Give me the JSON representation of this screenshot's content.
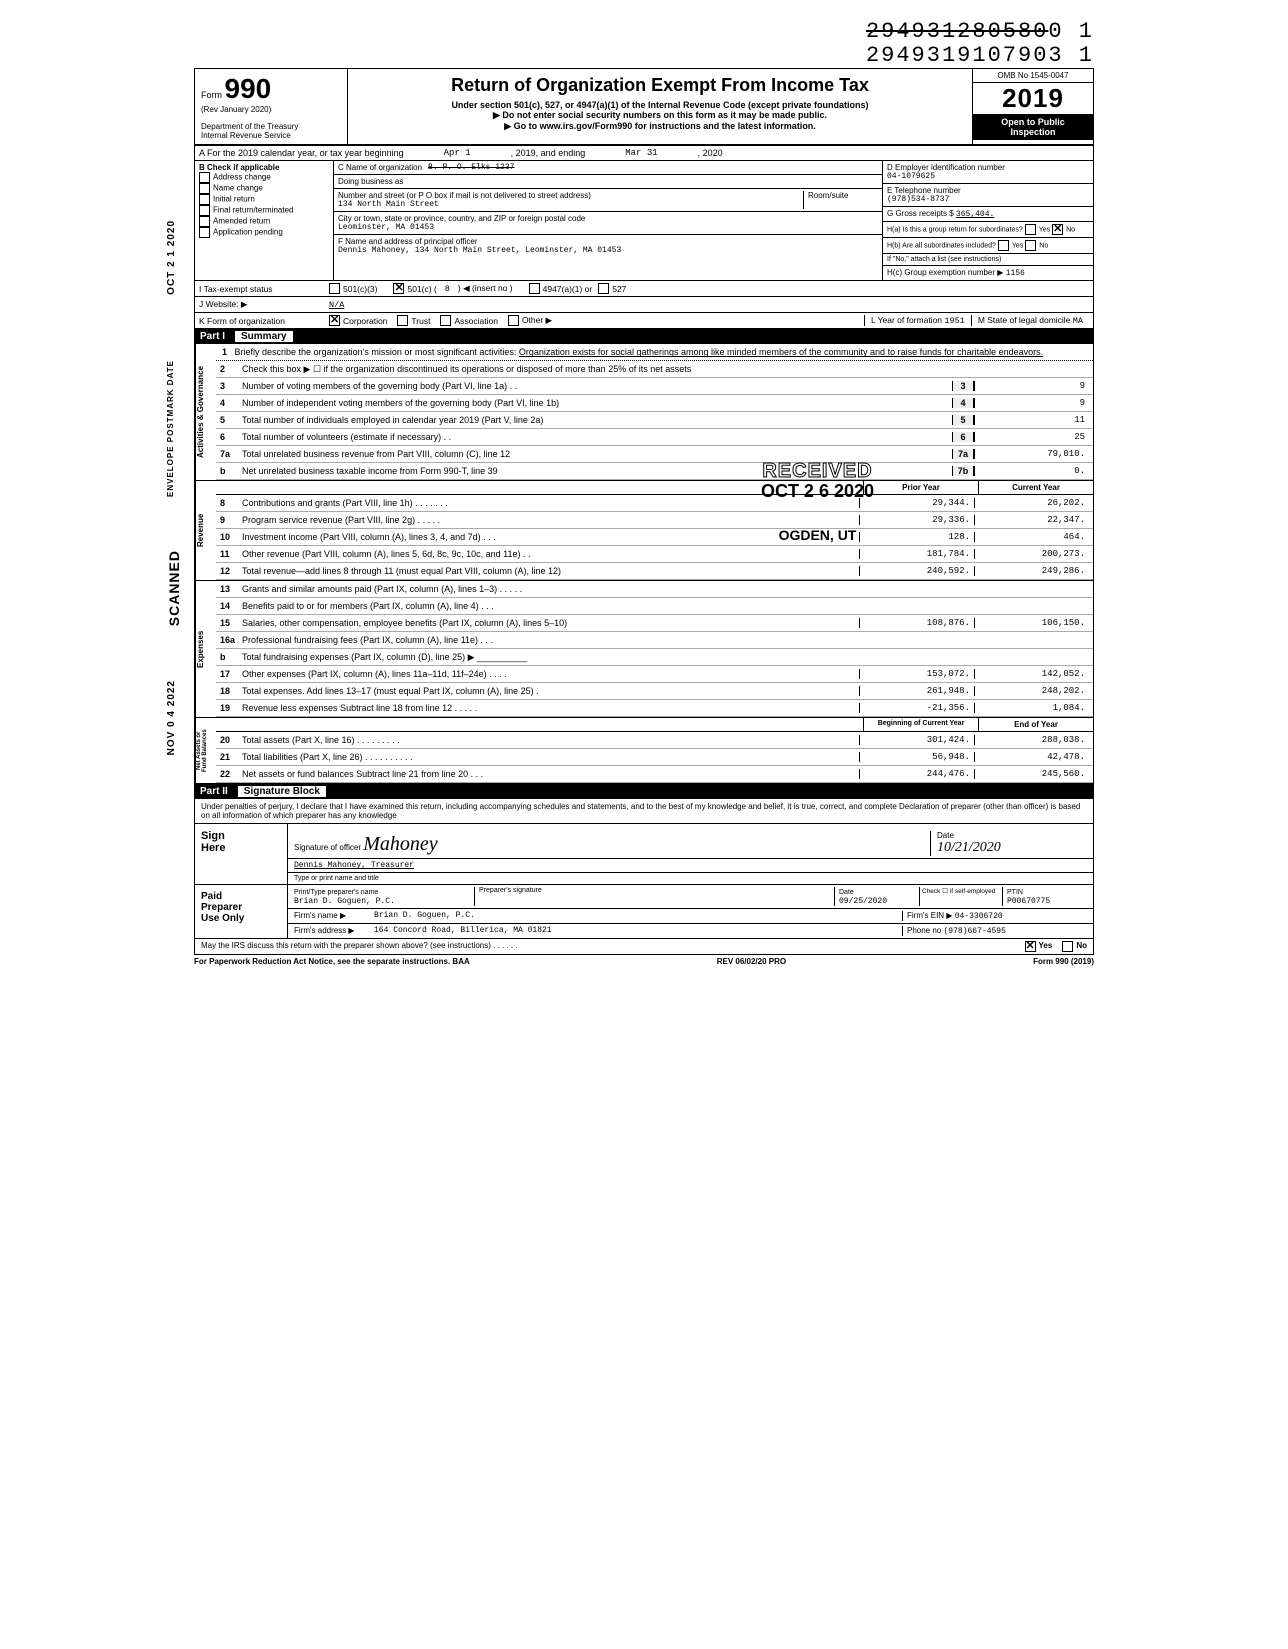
{
  "barcode": {
    "line1": "294931280580",
    "line1_suffix": "0  1",
    "line2": "29493191079",
    "line2_suffix": "03  1"
  },
  "header": {
    "form_word": "Form",
    "form_num": "990",
    "rev": "(Rev  January 2020)",
    "dept": "Department of the Treasury\nInternal Revenue Service",
    "title": "Return of Organization Exempt From Income Tax",
    "sub1": "Under section 501(c), 527, or 4947(a)(1) of the Internal Revenue Code (except private foundations)",
    "sub2": "▶ Do not enter social security numbers on this form as it may be made public.",
    "sub3": "▶ Go to www.irs.gov/Form990 for instructions and the latest information.",
    "omb": "OMB No 1545-0047",
    "year_prefix": "20",
    "year_suffix": "19",
    "open1": "Open to Public",
    "open2": "Inspection"
  },
  "line_a": {
    "label": "A   For the 2019 calendar year, or tax year beginning",
    "begin": "Apr 1",
    "mid": ", 2019, and ending",
    "end": "Mar 31",
    "endyear": ", 2020"
  },
  "col_b": {
    "label": "B   Check if applicable",
    "items": [
      "Address change",
      "Name change",
      "Initial return",
      "Final return/terminated",
      "Amended return",
      "Application pending"
    ]
  },
  "col_c": {
    "name_label": "C Name of organization",
    "name": "B. P. O.   Elks  1237",
    "dba_label": "Doing business as",
    "street_label": "Number and street (or P O  box if mail is not delivered to street address)",
    "street": "134 North Main Street",
    "room_label": "Room/suite",
    "city_label": "City or town, state or province, country, and ZIP or foreign postal code",
    "city": "Leominster, MA 01453",
    "officer_label": "F Name and address of principal officer",
    "officer": "Dennis Mahoney, 134 North Main Street, Leominster, MA 01453"
  },
  "col_d": {
    "ein_label": "D Employer identification number",
    "ein": "04-1079625",
    "tel_label": "E Telephone number",
    "tel": "(978)534-8737",
    "gross_label": "G Gross receipts $",
    "gross": "365,404.",
    "ha": "H(a) Is this a group return for subordinates?",
    "hb": "H(b) Are all subordinates included?",
    "hnote": "If \"No,\" attach a list  (see instructions)",
    "hc": "H(c) Group exemption number ▶",
    "hc_val": "1156"
  },
  "row_i": {
    "label": "I      Tax-exempt status",
    "opt1": "501(c)(3)",
    "opt2": "501(c) (",
    "opt2_num": "8",
    "opt2_suffix": ") ◀ (insert no )",
    "opt3": "4947(a)(1)  or",
    "opt4": "527"
  },
  "row_j": {
    "label": "J      Website: ▶",
    "val": "N/A"
  },
  "row_k": {
    "label": "K     Form of organization",
    "corp": "Corporation",
    "trust": "Trust",
    "assoc": "Association",
    "other": "Other ▶",
    "year_label": "L Year of formation",
    "year": "1951",
    "state_label": "M State of legal domicile",
    "state": "MA"
  },
  "part1": {
    "num": "Part I",
    "title": "Summary"
  },
  "mission": {
    "num": "1",
    "label": "Briefly describe the organization's mission or most significant activities:",
    "text": "Organization exists for social gatherings among like minded members of the community and to raise funds for charitable endeavors."
  },
  "line2": {
    "num": "2",
    "text": "Check this box ▶ ☐ if the organization discontinued its operations or disposed of more than 25% of its net assets"
  },
  "gov_lines": [
    {
      "n": "3",
      "d": "Number of voting members of the governing body (Part VI, line 1a)  .  .",
      "b": "3",
      "v": "9"
    },
    {
      "n": "4",
      "d": "Number of independent voting members of the governing body (Part VI, line 1b)",
      "b": "4",
      "v": "9"
    },
    {
      "n": "5",
      "d": "Total number of individuals employed in calendar year 2019 (Part V, line 2a)",
      "b": "5",
      "v": "11"
    },
    {
      "n": "6",
      "d": "Total number of volunteers (estimate if necessary)   .   .",
      "b": "6",
      "v": "25"
    },
    {
      "n": "7a",
      "d": "Total unrelated business revenue from Part VIII, column (C), line 12",
      "b": "7a",
      "v": "79,010."
    },
    {
      "n": "b",
      "d": "Net unrelated business taxable income from Form 990-T, line 39",
      "b": "7b",
      "v": "0."
    }
  ],
  "col_hdr": {
    "prior": "Prior Year",
    "curr": "Current Year"
  },
  "revenue": [
    {
      "n": "8",
      "d": "Contributions and grants (Part VIII, line 1h) .  .  .  .  .  .  .",
      "p": "29,344.",
      "c": "26,202."
    },
    {
      "n": "9",
      "d": "Program service revenue (Part VIII, line 2g)     .   .   .    .   .",
      "p": "29,336.",
      "c": "22,347."
    },
    {
      "n": "10",
      "d": "Investment income (Part VIII, column (A), lines 3, 4, and 7d)  .  .  .",
      "p": "128.",
      "c": "464."
    },
    {
      "n": "11",
      "d": "Other revenue (Part VIII, column (A), lines 5, 6d, 8c, 9c, 10c, and 11e)   .  .",
      "p": "181,784.",
      "c": "200,273."
    },
    {
      "n": "12",
      "d": "Total revenue—add lines 8 through 11 (must equal Part VIII, column (A), line 12)",
      "p": "240,592.",
      "c": "249,286."
    }
  ],
  "expenses": [
    {
      "n": "13",
      "d": "Grants and similar amounts paid (Part IX, column (A), lines 1–3) .  .  .  .  .",
      "p": "",
      "c": ""
    },
    {
      "n": "14",
      "d": "Benefits paid to or for members (Part IX, column (A), line 4)   .   .   .",
      "p": "",
      "c": ""
    },
    {
      "n": "15",
      "d": "Salaries, other compensation, employee benefits (Part IX, column (A), lines 5–10)",
      "p": "108,876.",
      "c": "106,150."
    },
    {
      "n": "16a",
      "d": "Professional fundraising fees (Part IX, column (A),  line 11e)   .   .   .",
      "p": "",
      "c": ""
    },
    {
      "n": "b",
      "d": "Total fundraising expenses (Part IX, column (D), line 25) ▶  __________",
      "p": "",
      "c": ""
    },
    {
      "n": "17",
      "d": "Other expenses (Part IX, column (A), lines 11a–11d, 11f–24e)    .   .   .   .",
      "p": "153,072.",
      "c": "142,052."
    },
    {
      "n": "18",
      "d": "Total expenses. Add lines 13–17 (must equal Part IX, column (A), line 25)   .",
      "p": "261,948.",
      "c": "248,202."
    },
    {
      "n": "19",
      "d": "Revenue less expenses  Subtract line 18 from line 12  .   .  .  .  .",
      "p": "-21,356.",
      "c": "1,084."
    }
  ],
  "col_hdr2": {
    "prior": "Beginning of Current Year",
    "curr": "End of Year"
  },
  "netassets": [
    {
      "n": "20",
      "d": "Total assets (Part X, line 16)     .   .   .   .   .   .   .   .   .",
      "p": "301,424.",
      "c": "288,038."
    },
    {
      "n": "21",
      "d": "Total liabilities (Part X, line 26) .   .   .   .   .   .   .   .   .   .",
      "p": "56,948.",
      "c": "42,478."
    },
    {
      "n": "22",
      "d": "Net assets or fund balances  Subtract line 21 from line 20   .   .   .",
      "p": "244,476.",
      "c": "245,560."
    }
  ],
  "part2": {
    "num": "Part II",
    "title": "Signature Block"
  },
  "perjury": "Under penalties of perjury, I declare that I have examined this return, including accompanying schedules and statements, and to the best of my knowledge and belief, it is true, correct, and complete  Declaration of preparer (other than officer) is based on all information of which preparer has any knowledge",
  "sign": {
    "here": "Sign\nHere",
    "sig_label": "Signature of officer",
    "date_label": "Date",
    "sig_scrawl": "Mahoney",
    "date_val": "10/21/2020",
    "name_label": "Type or print name and title",
    "name": "Dennis Mahoney, Treasurer"
  },
  "preparer": {
    "label": "Paid\nPreparer\nUse Only",
    "name_label": "Print/Type preparer's name",
    "name": "Brian D. Goguen, P.C.",
    "sig_label": "Preparer's signature",
    "date_label": "Date",
    "date": "09/25/2020",
    "check_label": "Check ☐ if self-employed",
    "ptin_label": "PTIN",
    "ptin": "P00670775",
    "firm_label": "Firm's name    ▶",
    "firm": "Brian D. Goguen, P.C.",
    "ein_label": "Firm's EIN  ▶",
    "ein": "04-3306720",
    "addr_label": "Firm's address ▶",
    "addr": "164 Concord Road, Billerica, MA  01821",
    "phone_label": "Phone no",
    "phone": "(978)667-4595"
  },
  "irs_discuss": {
    "q": "May the IRS discuss this return with the preparer shown above? (see instructions)   .   .   .   .   .   .",
    "yes": "Yes",
    "no": "No"
  },
  "footer": {
    "left": "For Paperwork Reduction Act Notice, see the separate instructions.  BAA",
    "mid": "REV 06/02/20 PRO",
    "right": "Form 990 (2019)"
  },
  "stamps": {
    "received": "RECEIVED",
    "received_date": "OCT 2 6  2020",
    "received_loc": "OGDEN, UT",
    "scanned": "SCANNED",
    "date1": "OCT 2 1 2020",
    "date2": "NOV  0 4  2022",
    "envelope": "ENVELOPE\nPOSTMARK DATE"
  }
}
